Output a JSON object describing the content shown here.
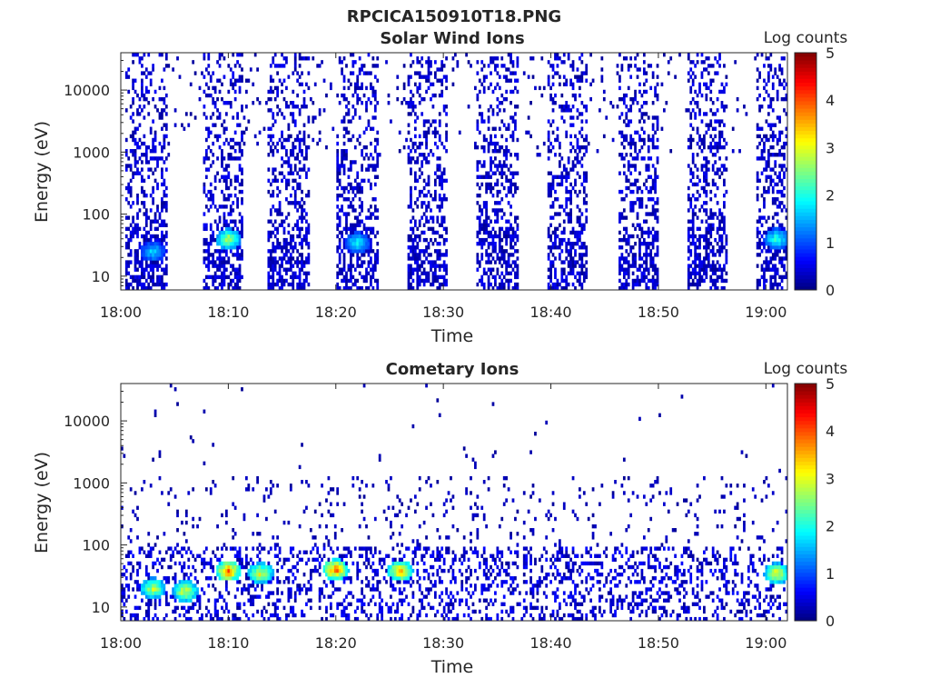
{
  "figure_title": "RPCICA150910T18.PNG",
  "colorbar_label": "Log counts",
  "colorbar_ticks": [
    "0",
    "1",
    "2",
    "3",
    "4",
    "5"
  ],
  "colorbar_range": [
    0,
    5
  ],
  "colormap": "jet",
  "chart_data": [
    {
      "type": "heatmap",
      "title": "Solar Wind Ions",
      "xlabel": "Time",
      "ylabel": "Energy (eV)",
      "x_tick_labels": [
        "18:00",
        "18:10",
        "18:20",
        "18:30",
        "18:40",
        "18:50",
        "19:00"
      ],
      "y_tick_labels": [
        "10",
        "100",
        "1000",
        "10000"
      ],
      "y_scale": "log",
      "ylim": [
        6,
        40000
      ],
      "xlim": [
        "18:00",
        "19:02"
      ],
      "scan_start_minutes": [
        0.5,
        7.6,
        13.7,
        20.1,
        26.6,
        33.1,
        39.6,
        46.2,
        52.7,
        59.2
      ],
      "scan_duration_minutes": 3.8,
      "hotspots": [
        {
          "time": "18:10",
          "energy": 40,
          "log_counts": 2.9
        },
        {
          "time": "18:03",
          "energy": 25,
          "log_counts": 1.8
        },
        {
          "time": "18:22",
          "energy": 35,
          "log_counts": 2.0
        },
        {
          "time": "19:01",
          "energy": 40,
          "log_counts": 2.2
        }
      ]
    },
    {
      "type": "heatmap",
      "title": "Cometary Ions",
      "xlabel": "Time",
      "ylabel": "Energy (eV)",
      "x_tick_labels": [
        "18:00",
        "18:10",
        "18:20",
        "18:30",
        "18:40",
        "18:50",
        "19:00"
      ],
      "y_tick_labels": [
        "10",
        "100",
        "1000",
        "10000"
      ],
      "y_scale": "log",
      "ylim": [
        6,
        40000
      ],
      "xlim": [
        "18:00",
        "19:02"
      ],
      "hotspots": [
        {
          "time": "18:10",
          "energy": 38,
          "log_counts": 4.0
        },
        {
          "time": "18:13",
          "energy": 35,
          "log_counts": 3.2
        },
        {
          "time": "18:20",
          "energy": 40,
          "log_counts": 4.1
        },
        {
          "time": "18:26",
          "energy": 38,
          "log_counts": 3.7
        },
        {
          "time": "18:06",
          "energy": 18,
          "log_counts": 3.2
        },
        {
          "time": "18:03",
          "energy": 20,
          "log_counts": 3.0
        },
        {
          "time": "19:01",
          "energy": 35,
          "log_counts": 3.3
        }
      ]
    }
  ]
}
